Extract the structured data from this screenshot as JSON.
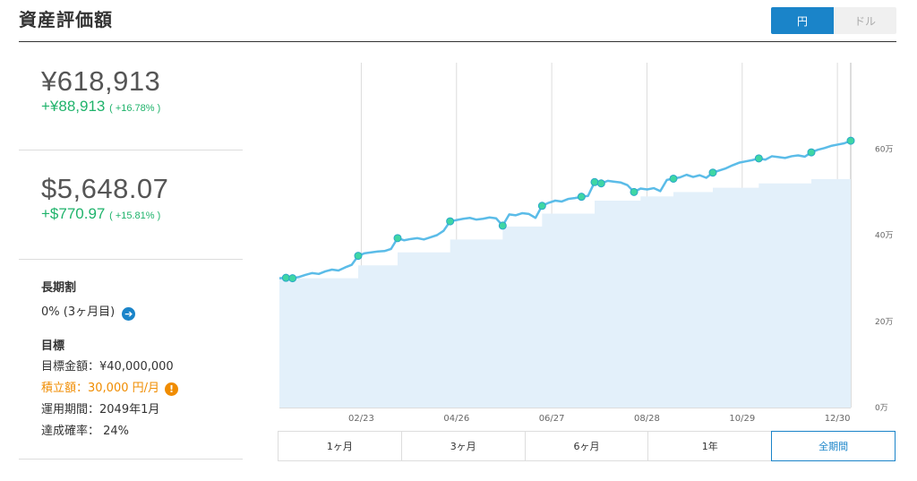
{
  "header": {
    "title": "資産評価額"
  },
  "currency_toggle": {
    "yen": "円",
    "dollar": "ドル",
    "selected": "円"
  },
  "summary": {
    "yen_total": "¥618,913",
    "yen_gain": "+¥88,913",
    "yen_gain_pct": "( +16.78% )",
    "usd_total": "$5,648.07",
    "usd_gain": "+$770.97",
    "usd_gain_pct": "( +15.81% )"
  },
  "long_term": {
    "label": "長期割",
    "value": "0% (3ヶ月目)",
    "icon": "arrow-right-icon"
  },
  "goal": {
    "label": "目標",
    "target_amount": "目標金額：¥40,000,000",
    "monthly": "積立額：30,000 円/月",
    "period": "運用期間：2049年1月",
    "probability": "達成確率： 24%",
    "warning_icon": "exclamation-icon"
  },
  "chart_data": {
    "type": "area",
    "unit": "万円",
    "x_ticks": [
      "02/23",
      "04/26",
      "06/27",
      "08/28",
      "10/29",
      "12/30"
    ],
    "y_ticks": [
      "0万",
      "20万",
      "40万",
      "60万"
    ],
    "ylim": [
      0,
      80
    ],
    "grid": "vertical",
    "series": [
      {
        "values": [
          30.0,
          30.1,
          30.0,
          30.3,
          30.8,
          31.2,
          31.0,
          31.6,
          32.0,
          31.8,
          32.5,
          33.1,
          35.2,
          35.8,
          36.0,
          36.2,
          36.3,
          36.8,
          39.3,
          38.8,
          39.1,
          39.3,
          39.0,
          39.5,
          40.0,
          41.0,
          43.2,
          43.5,
          43.8,
          44.0,
          43.6,
          43.8,
          44.1,
          43.9,
          42.2,
          44.8,
          44.6,
          45.1,
          44.9,
          44.0,
          46.8,
          47.5,
          48.0,
          47.8,
          48.4,
          48.6,
          48.9,
          49.1,
          52.3,
          52.0,
          52.6,
          52.4,
          52.2,
          51.6,
          50.0,
          50.8,
          50.6,
          50.9,
          50.2,
          52.8,
          53.1,
          53.4,
          54.0,
          53.5,
          53.9,
          53.3,
          54.5,
          55.0,
          55.5,
          56.2,
          56.8,
          57.1,
          57.4,
          57.8,
          57.5,
          58.3,
          58.1,
          57.9,
          58.3,
          58.5,
          58.2,
          59.2,
          59.8,
          60.2,
          60.7,
          61.0,
          61.3,
          61.9
        ]
      },
      {
        "values": [
          30.0,
          30.0,
          30.0,
          30.0,
          30.0,
          30.0,
          30.0,
          30.0,
          30.0,
          30.0,
          30.0,
          30.0,
          33.0,
          33.0,
          33.0,
          33.0,
          33.0,
          33.0,
          36.0,
          36.0,
          36.0,
          36.0,
          36.0,
          36.0,
          36.0,
          36.0,
          39.0,
          39.0,
          39.0,
          39.0,
          39.0,
          39.0,
          39.0,
          39.0,
          42.0,
          42.0,
          42.0,
          42.0,
          42.0,
          42.0,
          45.0,
          45.0,
          45.0,
          45.0,
          45.0,
          45.0,
          45.0,
          45.0,
          48.0,
          48.0,
          48.0,
          48.0,
          48.0,
          48.0,
          48.0,
          49.0,
          49.0,
          49.0,
          49.0,
          49.0,
          50.0,
          50.0,
          50.0,
          50.0,
          50.0,
          50.0,
          51.0,
          51.0,
          51.0,
          51.0,
          51.0,
          51.0,
          51.0,
          52.0,
          52.0,
          52.0,
          52.0,
          52.0,
          52.0,
          52.0,
          52.0,
          53.0,
          53.0,
          53.0,
          53.0,
          53.0,
          53.0,
          53.0
        ]
      }
    ],
    "marker_indices": [
      1,
      2,
      12,
      18,
      26,
      34,
      40,
      46,
      48,
      49,
      54,
      60,
      66,
      73,
      81,
      87
    ]
  },
  "range_tabs": {
    "options": [
      "1ヶ月",
      "3ヶ月",
      "6ヶ月",
      "1年",
      "全期間"
    ],
    "selected": "全期間"
  }
}
